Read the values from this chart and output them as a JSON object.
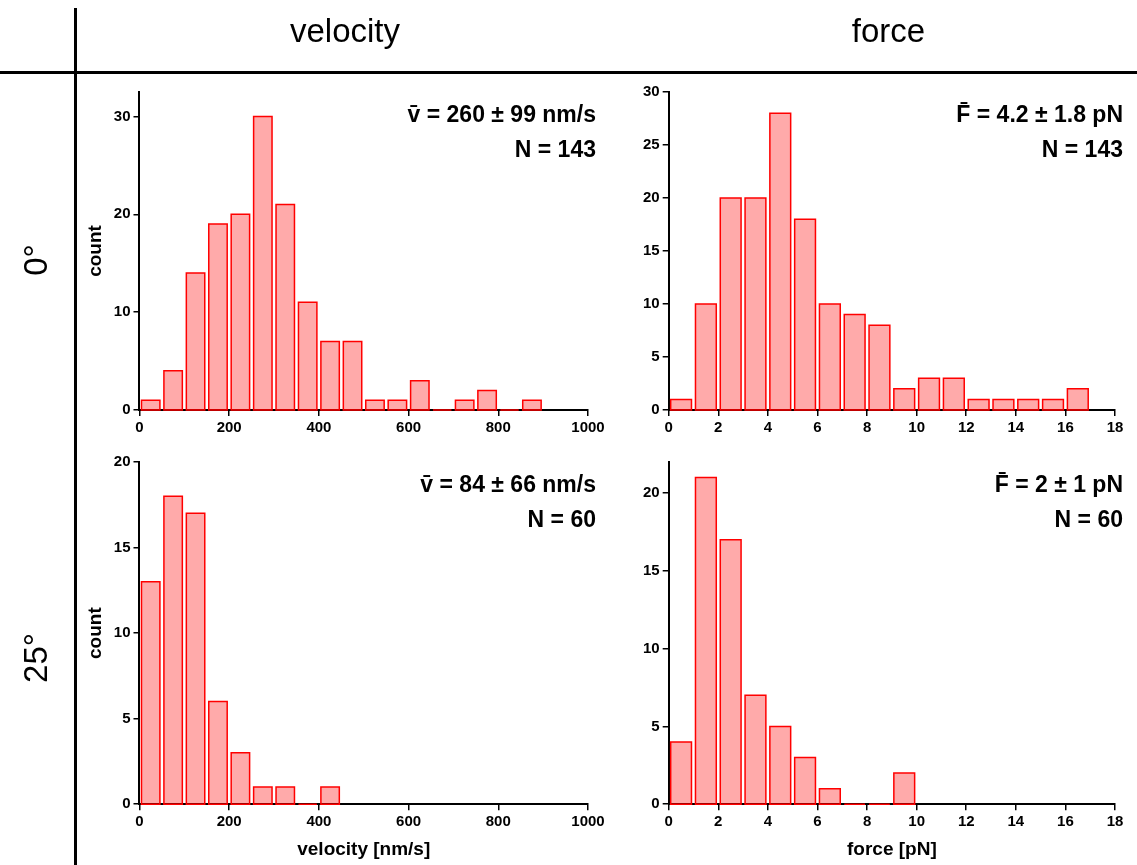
{
  "chart_data": [
    {
      "type": "histogram",
      "title": "velocity",
      "subtitle": "0°",
      "ylabel": "count",
      "color": "#ff0000",
      "bins": [
        0,
        50,
        100,
        150,
        200,
        250,
        300,
        350,
        400,
        450,
        500,
        550,
        600,
        650,
        700,
        750,
        800,
        850,
        900
      ],
      "values": [
        1,
        4,
        14,
        19,
        20,
        30,
        21,
        11,
        7,
        7,
        1,
        1,
        3,
        0,
        1,
        2,
        0,
        1
      ],
      "xlim": [
        0,
        1000
      ],
      "xticks": [
        0,
        200,
        400,
        600,
        800,
        1000
      ],
      "ylim": [
        0,
        32.5
      ],
      "yticks": [
        0,
        10,
        20,
        30
      ],
      "annotations": [
        "v̄ = 260 ± 99 nm/s",
        "N = 143"
      ]
    },
    {
      "type": "histogram",
      "title": "force",
      "color": "#ff0000",
      "bins": [
        0,
        1,
        2,
        3,
        4,
        5,
        6,
        7,
        8,
        9,
        10,
        11,
        12,
        13,
        14,
        15,
        16,
        17
      ],
      "values": [
        1,
        10,
        20,
        20,
        28,
        18,
        10,
        9,
        8,
        2,
        3,
        3,
        1,
        1,
        1,
        1,
        2
      ],
      "xlim": [
        0,
        18
      ],
      "xticks": [
        0,
        2,
        4,
        6,
        8,
        10,
        12,
        14,
        16,
        18
      ],
      "ylim": [
        0,
        30
      ],
      "yticks": [
        0,
        5,
        10,
        15,
        20,
        25,
        30
      ],
      "annotations": [
        "F̄ = 4.2 ± 1.8 pN",
        "N = 143"
      ]
    },
    {
      "type": "histogram",
      "subtitle": "25°",
      "xlabel": "velocity [nm/s]",
      "ylabel": "count",
      "color": "#ff0000",
      "bins": [
        0,
        50,
        100,
        150,
        200,
        250,
        300,
        350,
        400,
        450
      ],
      "values": [
        13,
        18,
        17,
        6,
        3,
        1,
        1,
        0,
        1
      ],
      "xlim": [
        0,
        1000
      ],
      "xticks": [
        0,
        200,
        400,
        600,
        800,
        1000
      ],
      "ylim": [
        0,
        20
      ],
      "yticks": [
        0,
        5,
        10,
        15,
        20
      ],
      "annotations": [
        "v̄ = 84 ± 66 nm/s",
        "N = 60"
      ]
    },
    {
      "type": "histogram",
      "xlabel": "force [pN]",
      "color": "#ff0000",
      "bins": [
        0,
        1,
        2,
        3,
        4,
        5,
        6,
        7,
        8,
        9,
        10
      ],
      "values": [
        4,
        21,
        17,
        7,
        5,
        3,
        1,
        0,
        0,
        2
      ],
      "xlim": [
        0,
        18
      ],
      "xticks": [
        0,
        2,
        4,
        6,
        8,
        10,
        12,
        14,
        16,
        18
      ],
      "ylim": [
        0,
        22
      ],
      "yticks": [
        0,
        5,
        10,
        15,
        20
      ],
      "annotations": [
        "F̄ = 2 ± 1 pN",
        "N = 60"
      ]
    }
  ]
}
